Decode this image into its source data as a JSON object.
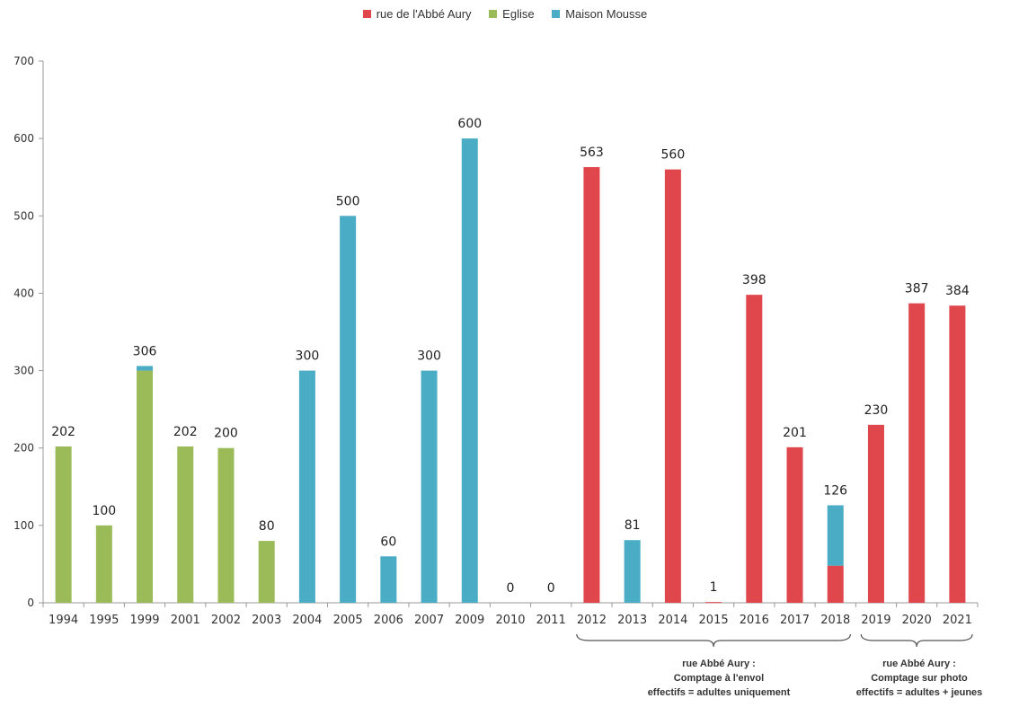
{
  "chart_data": {
    "type": "bar",
    "stacked": true,
    "categories": [
      "1994",
      "1995",
      "1999",
      "2001",
      "2002",
      "2003",
      "2004",
      "2005",
      "2006",
      "2007",
      "2009",
      "2010",
      "2011",
      "2012",
      "2013",
      "2014",
      "2015",
      "2016",
      "2017",
      "2018",
      "2019",
      "2020",
      "2021"
    ],
    "series": [
      {
        "name": "rue de l'Abbé Aury",
        "color": "#e0474c",
        "values": [
          0,
          0,
          0,
          0,
          0,
          0,
          0,
          0,
          0,
          0,
          0,
          0,
          0,
          563,
          0,
          560,
          1,
          398,
          201,
          48,
          230,
          387,
          384
        ]
      },
      {
        "name": "Eglise",
        "color": "#9bbb59",
        "values": [
          202,
          100,
          300,
          202,
          200,
          80,
          0,
          0,
          0,
          0,
          0,
          0,
          0,
          0,
          0,
          0,
          0,
          0,
          0,
          0,
          0,
          0,
          0
        ]
      },
      {
        "name": "Maison Mousse",
        "color": "#4bacc6",
        "values": [
          0,
          0,
          6,
          0,
          0,
          0,
          300,
          500,
          60,
          300,
          600,
          0,
          0,
          0,
          81,
          0,
          0,
          0,
          0,
          78,
          0,
          0,
          0
        ]
      }
    ],
    "data_labels": [
      "202",
      "100",
      "306",
      "202",
      "200",
      "80",
      "300",
      "500",
      "60",
      "300",
      "600",
      "0",
      "0",
      "563",
      "81",
      "560",
      "1",
      "398",
      "201",
      "126",
      "230",
      "387",
      "384"
    ],
    "y_ticks": [
      "0",
      "100",
      "200",
      "300",
      "400",
      "500",
      "600",
      "700"
    ],
    "ylim": [
      0,
      700
    ],
    "grid": false,
    "legend_position": "top-center",
    "annotations": [
      {
        "lines": [
          "rue Abbé Aury :",
          "Comptage à l'envol",
          "effectifs = adultes uniquement"
        ],
        "from_category": "2012",
        "to_category": "2018"
      },
      {
        "lines": [
          "rue Abbé Aury :",
          "Comptage sur photo",
          "effectifs = adultes + jeunes"
        ],
        "from_category": "2019",
        "to_category": "2021"
      }
    ]
  }
}
